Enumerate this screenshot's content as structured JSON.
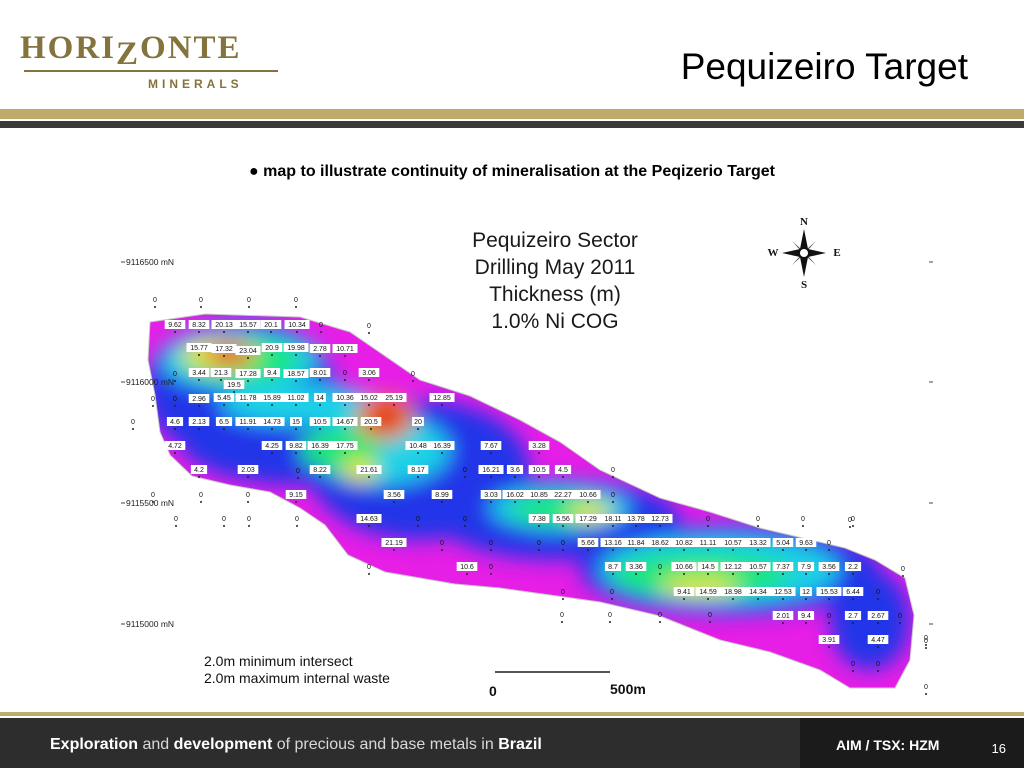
{
  "header": {
    "logo_word_left": "HORI",
    "logo_word_z": "Z",
    "logo_word_right": "ONTE",
    "logo_sub": "MINERALS",
    "title": "Pequizeiro Target"
  },
  "bullet": "● map to illustrate continuity of mineralisation at the Peqizerio Target",
  "map": {
    "title_lines": [
      "Pequizeiro Sector",
      "Drilling May 2011",
      "Thickness (m)",
      "1.0% Ni COG"
    ],
    "compass": {
      "n": "N",
      "s": "S",
      "e": "E",
      "w": "W"
    },
    "northings": [
      {
        "label": "9116500 mN"
      },
      {
        "label": "9116000 mN"
      },
      {
        "label": "9115500 mN"
      },
      {
        "label": "9115000 mN"
      }
    ],
    "legend": [
      "2.0m minimum intersect",
      "2.0m maximum internal waste"
    ],
    "scale": {
      "start": "0",
      "end": "500m"
    },
    "colors": {
      "magenta": "#e61ee6",
      "purple": "#9b1ee6",
      "blue": "#1e2ee6",
      "cyan": "#1ed2e6",
      "green": "#1ee678",
      "yellow": "#e6e61e",
      "orange": "#e68c1e",
      "red": "#e61e1e"
    },
    "holes": [
      {
        "t": "0"
      },
      {
        "t": "0"
      },
      {
        "t": "0"
      },
      {
        "t": "0"
      },
      {
        "t": "0"
      },
      {
        "t": "9.62"
      },
      {
        "t": "8.32"
      },
      {
        "t": "20.13"
      },
      {
        "t": "15.57"
      },
      {
        "t": "20.1"
      },
      {
        "t": "10.34"
      },
      {
        "t": "0"
      },
      {
        "t": "0"
      },
      {
        "t": "15.77"
      },
      {
        "t": "17.32"
      },
      {
        "t": "23.04"
      },
      {
        "t": "20.9"
      },
      {
        "t": "19.98"
      },
      {
        "t": "2.78"
      },
      {
        "t": "10.71"
      },
      {
        "t": "0"
      },
      {
        "t": "3.44"
      },
      {
        "t": "21.3"
      },
      {
        "t": "17.28"
      },
      {
        "t": "9.4"
      },
      {
        "t": "18.57"
      },
      {
        "t": "8.01"
      },
      {
        "t": "0"
      },
      {
        "t": "3.06"
      },
      {
        "t": "0"
      },
      {
        "t": "19.5"
      },
      {
        "t": "0"
      },
      {
        "t": "0"
      },
      {
        "t": "2.96"
      },
      {
        "t": "5.45"
      },
      {
        "t": "11.78"
      },
      {
        "t": "15.89"
      },
      {
        "t": "11.02"
      },
      {
        "t": "14"
      },
      {
        "t": "10.36"
      },
      {
        "t": "15.02"
      },
      {
        "t": "25.19"
      },
      {
        "t": "12.85"
      },
      {
        "t": "0"
      },
      {
        "t": "4.6"
      },
      {
        "t": "2.13"
      },
      {
        "t": "6.5"
      },
      {
        "t": "11.91"
      },
      {
        "t": "14.73"
      },
      {
        "t": "15"
      },
      {
        "t": "10.5"
      },
      {
        "t": "14.67"
      },
      {
        "t": "20.5"
      },
      {
        "t": "20"
      },
      {
        "t": "4.72"
      },
      {
        "t": "4.25"
      },
      {
        "t": "9.82"
      },
      {
        "t": "16.39"
      },
      {
        "t": "17.75"
      },
      {
        "t": "10.48"
      },
      {
        "t": "16.39"
      },
      {
        "t": "7.67"
      },
      {
        "t": "3.28"
      },
      {
        "t": "4.2"
      },
      {
        "t": "2.03"
      },
      {
        "t": "0"
      },
      {
        "t": "8.22"
      },
      {
        "t": "21.61"
      },
      {
        "t": "8.17"
      },
      {
        "t": "0"
      },
      {
        "t": "16.21"
      },
      {
        "t": "3.6"
      },
      {
        "t": "10.5"
      },
      {
        "t": "4.5"
      },
      {
        "t": "0"
      },
      {
        "t": "0"
      },
      {
        "t": "0"
      },
      {
        "t": "0"
      },
      {
        "t": "9.15"
      },
      {
        "t": "3.56"
      },
      {
        "t": "8.99"
      },
      {
        "t": "3.03"
      },
      {
        "t": "16.02"
      },
      {
        "t": "10.85"
      },
      {
        "t": "22.27"
      },
      {
        "t": "10.66"
      },
      {
        "t": "0"
      },
      {
        "t": "0"
      },
      {
        "t": "0"
      },
      {
        "t": "0"
      },
      {
        "t": "0"
      },
      {
        "t": "14.63"
      },
      {
        "t": "0"
      },
      {
        "t": "0"
      },
      {
        "t": "7.38"
      },
      {
        "t": "5.56"
      },
      {
        "t": "17.29"
      },
      {
        "t": "18.11"
      },
      {
        "t": "13.78"
      },
      {
        "t": "12.73"
      },
      {
        "t": "0"
      },
      {
        "t": "0"
      },
      {
        "t": "0"
      },
      {
        "t": "0"
      },
      {
        "t": "0"
      },
      {
        "t": "21.19"
      },
      {
        "t": "0"
      },
      {
        "t": "0"
      },
      {
        "t": "0"
      },
      {
        "t": "0"
      },
      {
        "t": "5.66"
      },
      {
        "t": "13.16"
      },
      {
        "t": "11.84"
      },
      {
        "t": "18.62"
      },
      {
        "t": "10.82"
      },
      {
        "t": "11.11"
      },
      {
        "t": "10.57"
      },
      {
        "t": "13.32"
      },
      {
        "t": "5.04"
      },
      {
        "t": "9.63"
      },
      {
        "t": "0"
      },
      {
        "t": "0"
      },
      {
        "t": "10.6"
      },
      {
        "t": "0"
      },
      {
        "t": "8.7"
      },
      {
        "t": "3.36"
      },
      {
        "t": "0"
      },
      {
        "t": "10.66"
      },
      {
        "t": "14.5"
      },
      {
        "t": "12.12"
      },
      {
        "t": "10.57"
      },
      {
        "t": "7.37"
      },
      {
        "t": "7.9"
      },
      {
        "t": "3.56"
      },
      {
        "t": "2.2"
      },
      {
        "t": "0"
      },
      {
        "t": "0"
      },
      {
        "t": "0"
      },
      {
        "t": "9.41"
      },
      {
        "t": "14.59"
      },
      {
        "t": "18.98"
      },
      {
        "t": "14.34"
      },
      {
        "t": "12.53"
      },
      {
        "t": "12"
      },
      {
        "t": "15.53"
      },
      {
        "t": "6.44"
      },
      {
        "t": "0"
      },
      {
        "t": "0"
      },
      {
        "t": "0"
      },
      {
        "t": "0"
      },
      {
        "t": "0"
      },
      {
        "t": "2.01"
      },
      {
        "t": "9.4"
      },
      {
        "t": "0"
      },
      {
        "t": "2.7"
      },
      {
        "t": "2.67"
      },
      {
        "t": "0"
      },
      {
        "t": "0"
      },
      {
        "t": "3.91"
      },
      {
        "t": "4.47"
      },
      {
        "t": "0"
      },
      {
        "t": "0"
      },
      {
        "t": "0"
      },
      {
        "t": "0"
      }
    ]
  },
  "footer": {
    "tag_parts": [
      {
        "text": "Exploration",
        "bold": true
      },
      {
        "text": " and ",
        "bold": false
      },
      {
        "text": "development",
        "bold": true
      },
      {
        "text": " of precious and base metals in ",
        "bold": false
      },
      {
        "text": "Brazil",
        "bold": true
      }
    ],
    "ticker": "AIM / TSX: HZM",
    "page": "16"
  }
}
